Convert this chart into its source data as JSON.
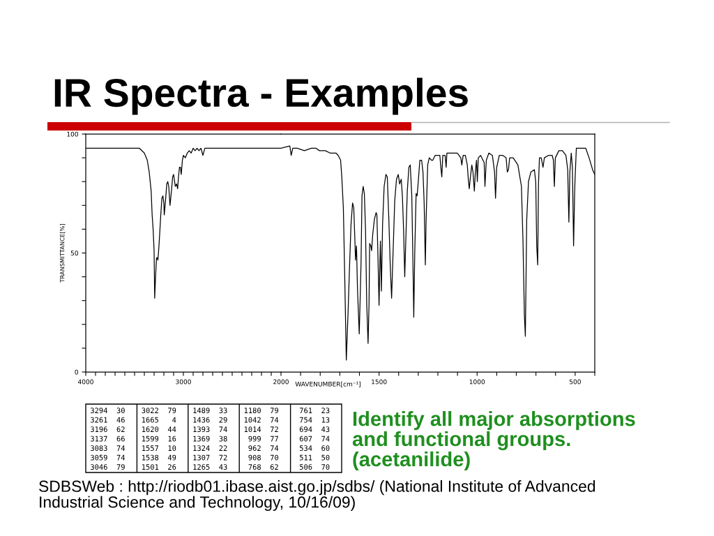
{
  "chart_data": [
    {
      "type": "line",
      "title": "IR Spectra - Examples",
      "ylabel": "TRANSMITTANCE[%]",
      "series": [
        {
          "color": "#000000",
          "x": [
            4000,
            3950,
            3900,
            3850,
            3800,
            3750,
            3700,
            3650,
            3600,
            3550,
            3500,
            3450,
            3400,
            3370,
            3350,
            3330,
            3320,
            3310,
            3300,
            3294,
            3285,
            3275,
            3268,
            3261,
            3250,
            3240,
            3230,
            3220,
            3210,
            3200,
            3196,
            3185,
            3170,
            3160,
            3150,
            3137,
            3120,
            3110,
            3100,
            3090,
            3083,
            3070,
            3059,
            3050,
            3040,
            3030,
            3022,
            3010,
            3000,
            2980,
            2960,
            2940,
            2920,
            2900,
            2880,
            2860,
            2840,
            2820,
            2800,
            2780,
            2760,
            2700,
            2600,
            2500,
            2400,
            2300,
            2200,
            2100,
            2000
          ],
          "values": [
            94,
            94,
            94,
            94,
            94,
            94,
            94,
            94,
            94,
            94,
            94,
            94,
            92,
            89,
            84,
            76,
            66,
            60,
            51,
            31,
            40,
            48,
            48,
            47,
            53,
            60,
            67,
            73,
            74,
            71,
            66,
            71,
            79,
            80,
            78,
            70,
            77,
            82,
            83,
            80,
            78,
            79,
            77,
            82,
            86,
            86,
            83,
            89,
            91,
            90,
            92,
            93,
            92,
            94,
            93,
            94,
            93,
            94,
            91,
            94,
            94,
            94,
            94,
            94,
            94,
            94,
            94,
            94,
            94
          ]
        }
      ],
      "xlim": [
        4000,
        2000
      ],
      "xticks": [
        4000,
        {
          "value": 3900,
          "label": null
        },
        {
          "value": 3800,
          "label": null
        },
        {
          "value": 3700,
          "label": null
        },
        {
          "value": 3600,
          "label": null
        },
        {
          "value": 3500,
          "label": null
        },
        {
          "value": 3400,
          "label": null
        },
        {
          "value": 3300,
          "label": null
        },
        {
          "value": 3200,
          "label": null
        },
        {
          "value": 3100,
          "label": null
        },
        3000,
        {
          "value": 2900,
          "label": null
        },
        {
          "value": 2800,
          "label": null
        },
        {
          "value": 2700,
          "label": null
        },
        {
          "value": 2600,
          "label": null
        },
        {
          "value": 2500,
          "label": null
        },
        {
          "value": 2400,
          "label": null
        },
        {
          "value": 2300,
          "label": null
        },
        {
          "value": 2200,
          "label": null
        },
        {
          "value": 2100,
          "label": null
        },
        2000
      ],
      "ylim": [
        0,
        100
      ],
      "yticks": [
        0,
        {
          "value": 10,
          "label": null
        },
        {
          "value": 20,
          "label": null
        },
        {
          "value": 30,
          "label": null
        },
        {
          "value": 40,
          "label": null
        },
        50,
        {
          "value": 60,
          "label": null
        },
        {
          "value": 70,
          "label": null
        },
        {
          "value": 80,
          "label": null
        },
        {
          "value": 90,
          "label": null
        },
        100
      ]
    },
    {
      "type": "line",
      "xlabel": "WAVENUMBER[cm⁻¹]",
      "series": [
        {
          "color": "#000000",
          "x": [
            2000,
            1955,
            1948,
            1940,
            1917,
            1881,
            1845,
            1821,
            1804,
            1774,
            1750,
            1732,
            1720,
            1708,
            1696,
            1690,
            1682,
            1675,
            1667,
            1658,
            1651,
            1643,
            1635,
            1629,
            1623,
            1620,
            1615,
            1610,
            1601,
            1592,
            1587,
            1581,
            1575,
            1569,
            1563,
            1556,
            1551,
            1548,
            1542,
            1538,
            1532,
            1524,
            1515,
            1511,
            1506,
            1500,
            1496,
            1493,
            1488,
            1482,
            1474,
            1465,
            1458,
            1450,
            1443,
            1436,
            1429,
            1420,
            1411,
            1402,
            1395,
            1387,
            1381,
            1375,
            1369,
            1363,
            1356,
            1348,
            1341,
            1333,
            1327,
            1323,
            1318,
            1311,
            1306,
            1300,
            1292,
            1283,
            1276,
            1270,
            1264,
            1260,
            1252,
            1244,
            1232,
            1226,
            1214,
            1190,
            1185,
            1180,
            1175,
            1163,
            1158,
            1154,
            1137,
            1101,
            1083,
            1078,
            1071,
            1060,
            1050,
            1044,
            1040,
            1034,
            1027,
            1021,
            1014,
            1009,
            1003,
            999,
            994,
            982,
            964,
            960,
            953,
            940,
            922,
            911,
            906,
            900,
            887,
            869,
            852,
            846,
            840,
            834,
            816,
            792,
            774,
            766,
            759,
            754,
            747,
            738,
            726,
            708,
            701,
            696,
            691,
            687,
            682,
            673,
            664,
            657,
            637,
            617,
            611,
            606,
            601,
            583,
            565,
            547,
            538,
            532,
            527,
            520,
            514,
            508,
            503,
            501,
            494,
            482,
            458,
            446,
            429,
            411,
            400
          ],
          "values": [
            94,
            95,
            91,
            94,
            94,
            93,
            94,
            94,
            93,
            93,
            92,
            92,
            92,
            91,
            89,
            82,
            69,
            40,
            5,
            25,
            43,
            62,
            71,
            69,
            55,
            47,
            53,
            35,
            16,
            45,
            74,
            78,
            75,
            60,
            29,
            12,
            29,
            54,
            53,
            51,
            58,
            64,
            67,
            66,
            50,
            28,
            45,
            55,
            34,
            62,
            78,
            83,
            82,
            64,
            45,
            31,
            49,
            72,
            81,
            83,
            79,
            81,
            74,
            60,
            40,
            57,
            76,
            86,
            87,
            74,
            45,
            23,
            50,
            75,
            74,
            80,
            89,
            89,
            84,
            71,
            45,
            64,
            87,
            90,
            89,
            89,
            91,
            91,
            86,
            82,
            91,
            91,
            86,
            92,
            92,
            92,
            90,
            87,
            91,
            91,
            87,
            80,
            77,
            82,
            87,
            84,
            76,
            84,
            89,
            80,
            90,
            91,
            88,
            78,
            89,
            92,
            91,
            84,
            73,
            86,
            91,
            91,
            90,
            84,
            85,
            90,
            90,
            87,
            78,
            55,
            24,
            15,
            64,
            80,
            84,
            85,
            80,
            53,
            45,
            79,
            90,
            90,
            86,
            90,
            91,
            91,
            89,
            78,
            90,
            93,
            93,
            91,
            85,
            63,
            84,
            92,
            86,
            53,
            74,
            80,
            94,
            94,
            94,
            94,
            90,
            85,
            83
          ]
        }
      ],
      "xlim": [
        2000,
        400
      ],
      "xticks": [
        {
          "value": 1900,
          "label": null
        },
        {
          "value": 1800,
          "label": null
        },
        {
          "value": 1700,
          "label": null
        },
        {
          "value": 1600,
          "label": null
        },
        1500,
        {
          "value": 1400,
          "label": null
        },
        {
          "value": 1300,
          "label": null
        },
        {
          "value": 1200,
          "label": null
        },
        {
          "value": 1100,
          "label": null
        },
        1000,
        {
          "value": 900,
          "label": null
        },
        {
          "value": 800,
          "label": null
        },
        {
          "value": 700,
          "label": null
        },
        {
          "value": 600,
          "label": null
        },
        500,
        {
          "value": 400,
          "label": null
        }
      ],
      "ylim": [
        0,
        100
      ],
      "tick_labels": "x"
    },
    {
      "type": "other",
      "annotations": [
        "3294  30",
        "3022  79",
        "1489  33",
        "1180  79",
        "761  23",
        "3261  46",
        "1665   4",
        "1436  29",
        "1042  74",
        "754  13",
        "3196  62",
        "1620  44",
        "1393  74",
        "1014  72",
        "694  43",
        "3137  66",
        "1599  16",
        "1369  38",
        "999  77",
        "607  74",
        "3083  74",
        "1557  10",
        "1324  22",
        "962  74",
        "534  60",
        "3059  74",
        "1538  49",
        "1307  72",
        "908  70",
        "511  50",
        "3046  79",
        "1501  26",
        "1265  43",
        "768  62",
        "506  70"
      ]
    },
    {
      "type": "other",
      "annotations": [
        "Identify all major absorptions\nand functional groups.\n(acetanilide)",
        "SDBSWeb : http://riodb01.ibase.aist.go.jp/sdbs/ (National Institute of Advanced\nIndustrial Science and Technology, 10/16/09)"
      ]
    }
  ]
}
